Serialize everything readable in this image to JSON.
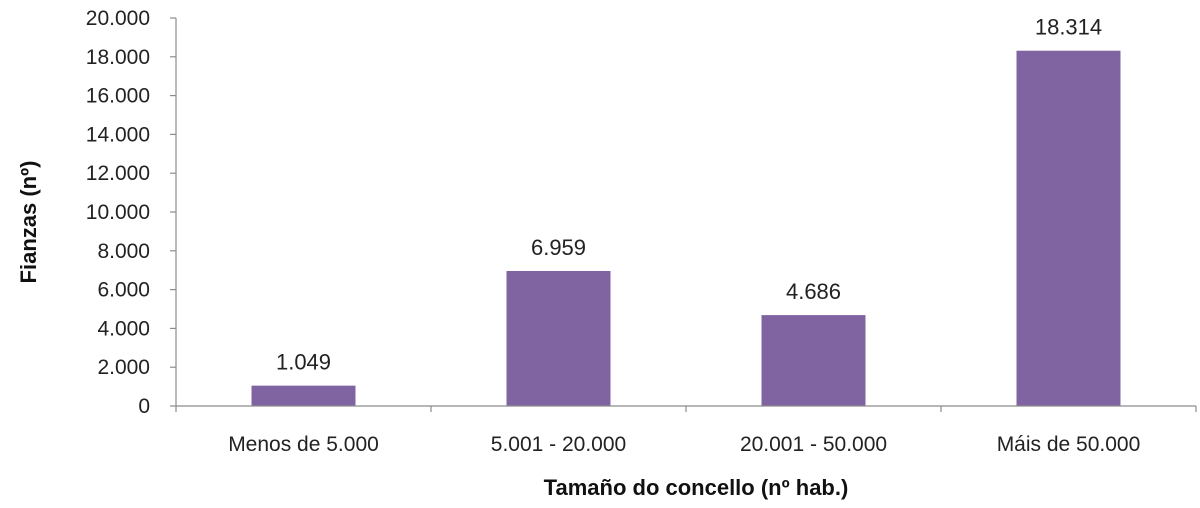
{
  "chart_data": {
    "type": "bar",
    "title": "",
    "xlabel": "Tamaño do concello (nº hab.)",
    "ylabel": "Fianzas (nº)",
    "categories": [
      "Menos de 5.000",
      "5.001 - 20.000",
      "20.001 - 50.000",
      "Máis de 50.000"
    ],
    "values": [
      1049,
      6959,
      4686,
      18314
    ],
    "value_labels": [
      "1.049",
      "6.959",
      "4.686",
      "18.314"
    ],
    "ylim": [
      0,
      20000
    ],
    "yticks": [
      0,
      2000,
      4000,
      6000,
      8000,
      10000,
      12000,
      14000,
      16000,
      18000,
      20000
    ],
    "ytick_labels": [
      "0",
      "2.000",
      "4.000",
      "6.000",
      "8.000",
      "10.000",
      "12.000",
      "14.000",
      "16.000",
      "18.000",
      "20.000"
    ],
    "bar_color": "#8064a2",
    "grid": false,
    "legend": "none"
  }
}
